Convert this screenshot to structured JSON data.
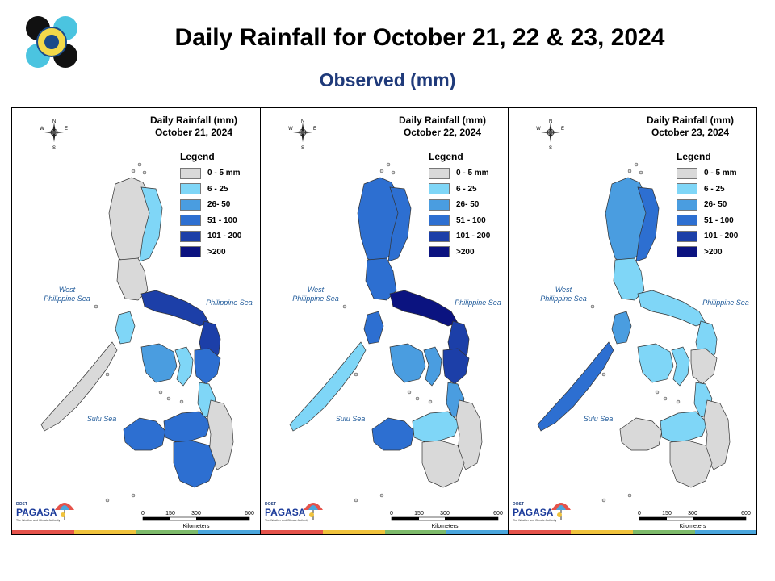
{
  "title": "Daily Rainfall for October 21, 22 & 23, 2024",
  "subtitle": "Observed (mm)",
  "legend": {
    "title": "Legend",
    "items": [
      {
        "label": "0 - 5 mm",
        "color": "#d9d9d9"
      },
      {
        "label": "6 - 25",
        "color": "#7fd6f7"
      },
      {
        "label": "26- 50",
        "color": "#4a9de0"
      },
      {
        "label": "51 - 100",
        "color": "#2d6fd1"
      },
      {
        "label": "101 - 200",
        "color": "#1c3fa8"
      },
      {
        "label": ">200",
        "color": "#0b1380"
      }
    ]
  },
  "seas": {
    "west": "West\nPhilippine Sea",
    "east": "Philippine Sea",
    "sulu": "Sulu Sea"
  },
  "compass": {
    "n": "N",
    "s": "S",
    "e": "E",
    "w": "W"
  },
  "scale": {
    "ticks": [
      "0",
      "150",
      "300",
      "600"
    ],
    "unit": "Kilometers"
  },
  "brand": {
    "top": "DOST",
    "name": "PAGASA",
    "tagline": "The Weather and Climate Authority"
  },
  "panels": [
    {
      "title": "Daily Rainfall (mm)",
      "date": "October 21, 2024",
      "regions": {
        "north": 0,
        "northeast": 1,
        "central_luzon": 0,
        "bicol": 4,
        "catanduanes": 4,
        "mindoro": 1,
        "palawan": 0,
        "visayas_west": 2,
        "visayas_east": 1,
        "samar": 3,
        "leyte": 1,
        "mindanao_west": 3,
        "mindanao_central": 3,
        "mindanao_east": 0,
        "mindanao_south": 3
      }
    },
    {
      "title": "Daily Rainfall (mm)",
      "date": "October 22, 2024",
      "regions": {
        "north": 3,
        "northeast": 3,
        "central_luzon": 3,
        "bicol": 5,
        "catanduanes": 4,
        "mindoro": 3,
        "palawan": 1,
        "visayas_west": 2,
        "visayas_east": 2,
        "samar": 4,
        "leyte": 2,
        "mindanao_west": 3,
        "mindanao_central": 1,
        "mindanao_east": 0,
        "mindanao_south": 0
      }
    },
    {
      "title": "Daily Rainfall (mm)",
      "date": "October 23, 2024",
      "regions": {
        "north": 2,
        "northeast": 3,
        "central_luzon": 1,
        "bicol": 1,
        "catanduanes": 1,
        "mindoro": 2,
        "palawan": 3,
        "visayas_west": 1,
        "visayas_east": 1,
        "samar": 0,
        "leyte": 1,
        "mindanao_west": 0,
        "mindanao_central": 1,
        "mindanao_east": 0,
        "mindanao_south": 0
      }
    }
  ],
  "stripe_colors": [
    "#e5534b",
    "#f0c33c",
    "#7dbb6a",
    "#4aa6dd"
  ]
}
